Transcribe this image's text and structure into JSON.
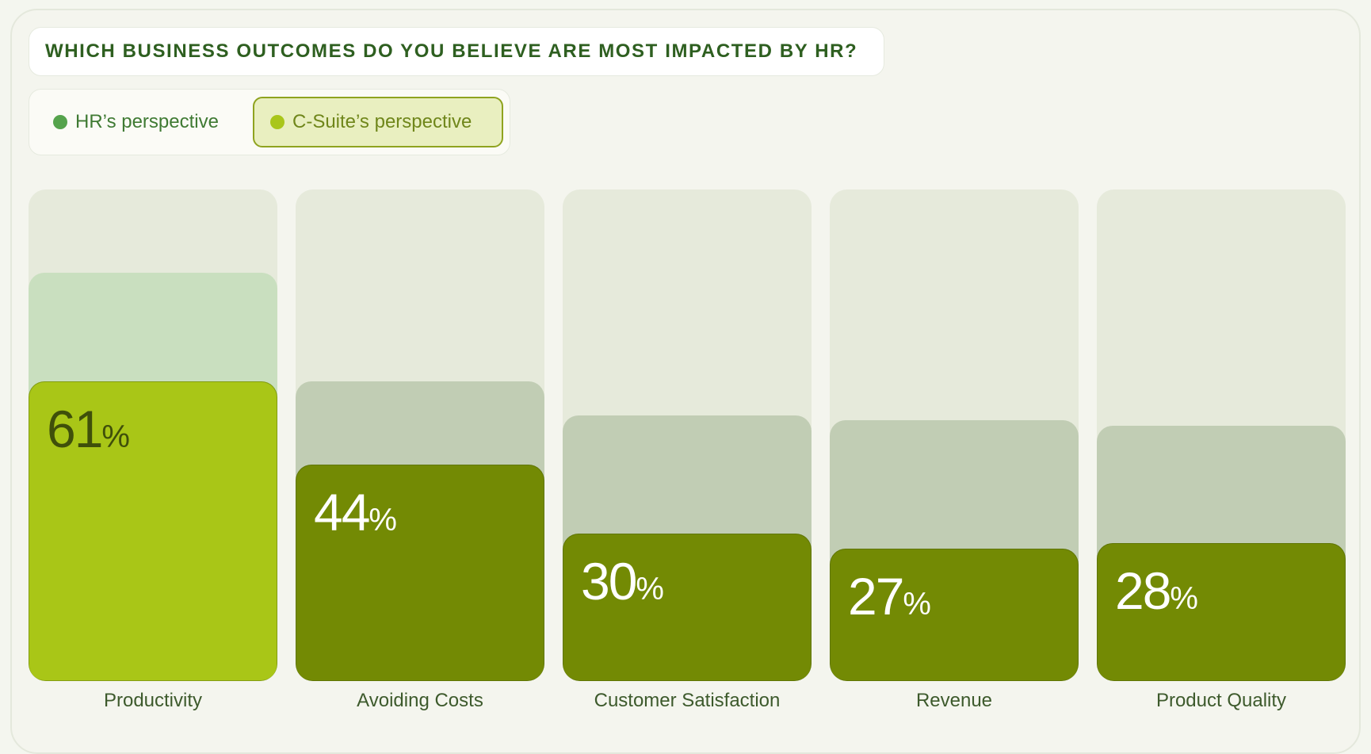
{
  "title": "WHICH BUSINESS OUTCOMES DO YOU BELIEVE ARE MOST IMPACTED BY HR?",
  "legend": {
    "hr_label": "HR’s perspective",
    "cs_label": "C-Suite’s perspective",
    "active": "cs"
  },
  "colors": {
    "hr_dot": "#55a34c",
    "cs_dot": "#a9c61a",
    "background_column": "#e6eadb",
    "hr_bar_highlight": "#c9dfbf",
    "hr_bar_muted": "#c1cdb4",
    "cs_bar_highlight": "#a9c617",
    "cs_bar_muted": "#738a04",
    "value_dark": "#3f4f0a",
    "value_light": "#ffffff"
  },
  "chart_data": {
    "type": "bar",
    "title": "WHICH BUSINESS OUTCOMES DO YOU BELIEVE ARE MOST IMPACTED BY HR?",
    "categories": [
      "Productivity",
      "Avoiding Costs",
      "Customer Satisfaction",
      "Revenue",
      "Product Quality"
    ],
    "series": [
      {
        "name": "HR’s perspective",
        "values": [
          83,
          61,
          54,
          53,
          52
        ]
      },
      {
        "name": "C-Suite’s perspective",
        "values": [
          61,
          44,
          30,
          27,
          28
        ]
      }
    ],
    "displayed_series": "C-Suite’s perspective",
    "value_suffix": "%",
    "ylim": [
      0,
      100
    ],
    "xlabel": "",
    "ylabel": "",
    "legend_position": "top-left"
  }
}
